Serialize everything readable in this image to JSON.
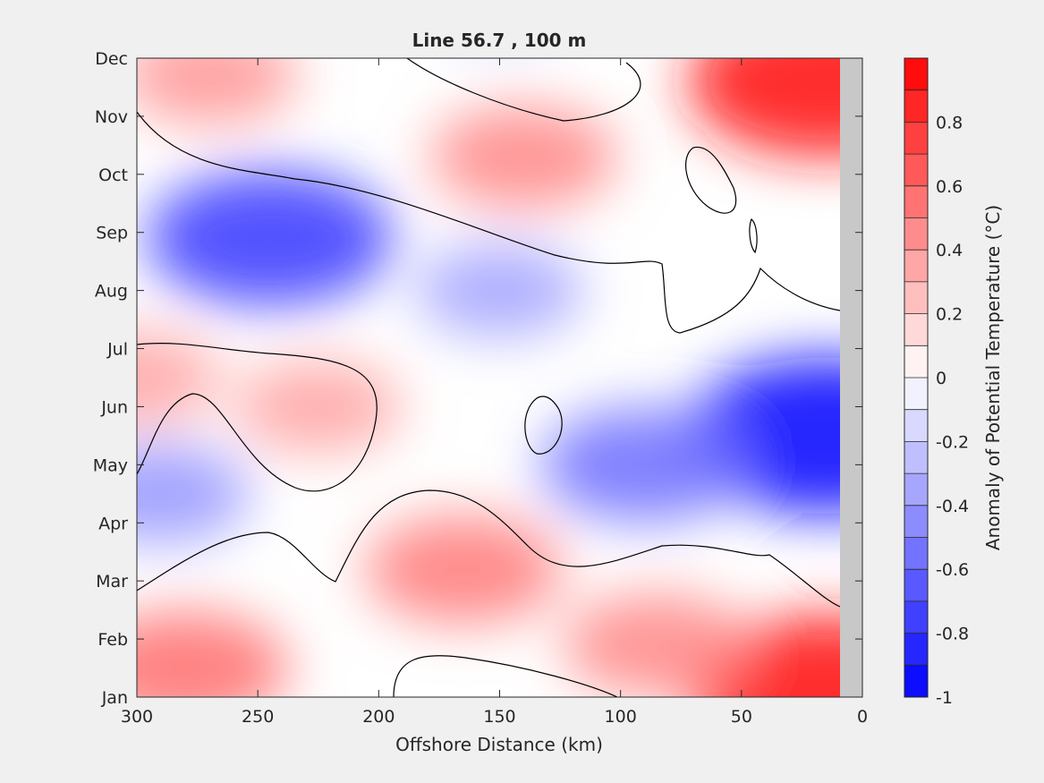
{
  "chart_data": {
    "type": "heatmap",
    "subtype": "filled-contour",
    "title": "Line 56.7 , 100 m",
    "xlabel": "Offshore Distance (km)",
    "ylabel": "",
    "xlim": [
      300,
      0
    ],
    "x_reversed": true,
    "xticks": [
      "300",
      "250",
      "200",
      "150",
      "100",
      "50",
      "0"
    ],
    "ylim": [
      "Jan",
      "Dec"
    ],
    "yticks": [
      "Jan",
      "Feb",
      "Mar",
      "Apr",
      "May",
      "Jun",
      "Jul",
      "Aug",
      "Sep",
      "Oct",
      "Nov",
      "Dec"
    ],
    "colorbar": {
      "label": "Anomaly of Potential Temperature (°C)",
      "range": [
        -1,
        1
      ],
      "step": 0.1,
      "ticks": [
        "0.8",
        "0.6",
        "0.4",
        "0.2",
        "0",
        "-0.2",
        "-0.4",
        "-0.6",
        "-0.8",
        "-1"
      ],
      "colormap": "blue-white-red"
    },
    "colors": {
      "max_warm": "#ff0000",
      "max_cold": "#0000ff",
      "neutral": "#ffffff",
      "land_mask": "#c8c8c8"
    },
    "features": [
      {
        "label": "warm",
        "x": 15,
        "month": 11.6,
        "value": 0.9
      },
      {
        "label": "warm",
        "x": 280,
        "month": 1.5,
        "value": 0.55
      },
      {
        "label": "warm",
        "x": 15,
        "month": 1.1,
        "value": 0.9
      },
      {
        "label": "warm",
        "x": 165,
        "month": 3.2,
        "value": 0.5
      },
      {
        "label": "warm",
        "x": 85,
        "month": 1.9,
        "value": 0.45
      },
      {
        "label": "warm",
        "x": 140,
        "month": 10.3,
        "value": 0.45
      },
      {
        "label": "warm",
        "x": 270,
        "month": 11.7,
        "value": 0.4
      },
      {
        "label": "warm",
        "x": 225,
        "month": 6.0,
        "value": 0.35
      },
      {
        "label": "warm",
        "x": 300,
        "month": 6.5,
        "value": 0.35
      },
      {
        "label": "cold",
        "x": 245,
        "month": 8.9,
        "value": -0.75
      },
      {
        "label": "cold",
        "x": 15,
        "month": 5.5,
        "value": -0.95
      },
      {
        "label": "cold",
        "x": 90,
        "month": 5.0,
        "value": -0.55
      },
      {
        "label": "cold",
        "x": 290,
        "month": 4.5,
        "value": -0.4
      },
      {
        "label": "cold",
        "x": 150,
        "month": 8.0,
        "value": -0.35
      },
      {
        "label": "cold",
        "x": 150,
        "month": 12.8,
        "value": -0.15
      }
    ]
  }
}
